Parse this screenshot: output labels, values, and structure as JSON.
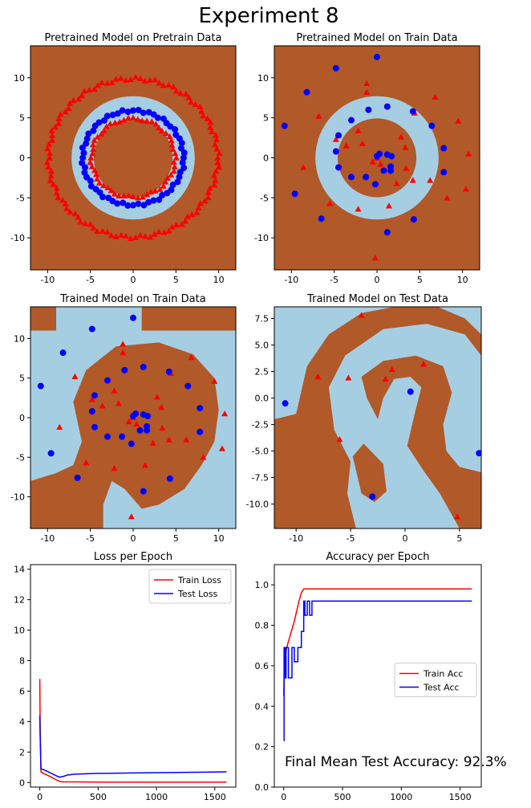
{
  "suptitle": "Experiment 8",
  "footnote": "Final Mean Test Accuracy: 92.3%",
  "colors": {
    "region_class0": "#a6cee3",
    "region_class1": "#b15928",
    "points_class0": "#0000ff",
    "points_class1": "#ff0000",
    "train_line": "#ff0000",
    "test_line": "#0000ff"
  },
  "chart_data": [
    {
      "type": "scatter",
      "subtype": "decision-boundary",
      "title": "Pretrained Model on Pretrain Data",
      "xlim": [
        -12,
        12
      ],
      "ylim": [
        -14,
        14
      ],
      "xticks": [
        "-10",
        "-5",
        "0",
        "5",
        "10"
      ],
      "yticks": [
        "-10",
        "-5",
        "0",
        "5",
        "10"
      ],
      "regions": "concentric rings: brown outer, light-blue ring r≈4–7, brown inner disk r<4",
      "series": [
        {
          "marker": "triangle",
          "class": 1,
          "points": "ring r≈10, ~100 points; inner ring r≈4.8, ~50 points"
        },
        {
          "marker": "circle",
          "class": 0,
          "points": "ring r≈6, ~60 points"
        }
      ]
    },
    {
      "type": "scatter",
      "subtype": "decision-boundary",
      "title": "Pretrained Model on Train Data",
      "xlim": [
        -12,
        12
      ],
      "ylim": [
        -14,
        14
      ],
      "xticks": [
        "-10",
        "-5",
        "0",
        "5",
        "10"
      ],
      "yticks": [
        "-10",
        "-5",
        "0",
        "5",
        "10"
      ],
      "circles": [
        [
          -10.8,
          4
        ],
        [
          -9.6,
          -4.5
        ],
        [
          -8.2,
          8.2
        ],
        [
          -6.5,
          -7.6
        ],
        [
          -4.8,
          11.2
        ],
        [
          -4.5,
          2.8
        ],
        [
          -4.8,
          0.8
        ],
        [
          -4.5,
          -1.2
        ],
        [
          -3,
          4.7
        ],
        [
          -3,
          -2.4
        ],
        [
          -1.3,
          -2.4
        ],
        [
          1.6,
          -1.6
        ],
        [
          -1,
          6
        ],
        [
          0,
          12.6
        ],
        [
          0,
          0.2
        ],
        [
          0.3,
          0.5
        ],
        [
          -0.2,
          -3.3
        ],
        [
          0.8,
          -1.6
        ],
        [
          1.2,
          0.4
        ],
        [
          1.7,
          0.2
        ],
        [
          1.6,
          -1.1
        ],
        [
          1.2,
          6.4
        ],
        [
          1.2,
          -9.3
        ],
        [
          4.2,
          5.8
        ],
        [
          4.3,
          -7.7
        ],
        [
          6.4,
          4
        ],
        [
          7.8,
          1.2
        ],
        [
          7.8,
          -1.8
        ]
      ],
      "triangles": [
        [
          -8.6,
          -1.2
        ],
        [
          -6.8,
          5.2
        ],
        [
          -5.5,
          -5.7
        ],
        [
          -4.8,
          2.3
        ],
        [
          -3.6,
          1.5
        ],
        [
          -2.2,
          3.4
        ],
        [
          -2.2,
          -6.4
        ],
        [
          -1.7,
          1.8
        ],
        [
          -1.2,
          8.2
        ],
        [
          -1.2,
          9.3
        ],
        [
          -0.5,
          -0.5
        ],
        [
          -0.2,
          -12.5
        ],
        [
          0,
          0
        ],
        [
          0.4,
          -0.8
        ],
        [
          1.4,
          -6
        ],
        [
          2.3,
          -3.2
        ],
        [
          2.8,
          2.6
        ],
        [
          3.3,
          1.3
        ],
        [
          3.4,
          -1.3
        ],
        [
          4.2,
          -2.8
        ],
        [
          4.4,
          5.6
        ],
        [
          6.2,
          -2.8
        ],
        [
          6.8,
          7.6
        ],
        [
          8.2,
          -5
        ],
        [
          9.5,
          4.6
        ],
        [
          10.4,
          -3.9
        ],
        [
          10.7,
          0.5
        ]
      ]
    },
    {
      "type": "scatter",
      "subtype": "decision-boundary",
      "title": "Trained Model on Train Data",
      "xlim": [
        -12,
        12
      ],
      "ylim": [
        -14,
        14
      ],
      "xticks": [
        "-10",
        "-5",
        "0",
        "5",
        "10"
      ],
      "yticks": [
        "-10",
        "-5",
        "0",
        "5",
        "10"
      ],
      "regions": "spiral-shaped boundary matching the two-class spiral"
    },
    {
      "type": "scatter",
      "subtype": "decision-boundary",
      "title": "Trained Model on Test Data",
      "xlim": [
        -12,
        7
      ],
      "ylim": [
        -12.3,
        8.6
      ],
      "xticks": [
        "-10",
        "-5",
        "0",
        "5"
      ],
      "yticks": [
        "7.5",
        "5.0",
        "2.5",
        "0.0",
        "-2.5",
        "-5.0",
        "-7.5",
        "-10.0"
      ],
      "circles": [
        [
          -11,
          -0.5
        ],
        [
          -3,
          -9.3
        ],
        [
          0.5,
          0.6
        ],
        [
          6.8,
          -5.2
        ]
      ],
      "triangles": [
        [
          -8,
          2
        ],
        [
          -5.2,
          1.9
        ],
        [
          -4,
          7.8
        ],
        [
          -6,
          -3.9
        ],
        [
          -1.8,
          1.8
        ],
        [
          -1.2,
          2.7
        ],
        [
          1.7,
          3.2
        ],
        [
          4.8,
          -11.2
        ]
      ]
    },
    {
      "type": "line",
      "title": "Loss per Epoch",
      "xlim": [
        -80,
        1680
      ],
      "ylim": [
        -0.3,
        14.3
      ],
      "xticks": [
        "0",
        "500",
        "1000",
        "1500"
      ],
      "yticks": [
        "0",
        "2",
        "4",
        "6",
        "8",
        "10",
        "12",
        "14"
      ],
      "legend_position": "upper right",
      "series": [
        {
          "name": "Train Loss",
          "color": "#ff0000",
          "x": [
            0,
            3,
            10,
            30,
            60,
            100,
            140,
            170,
            200,
            300,
            500,
            1000,
            1600
          ],
          "y": [
            6.8,
            3.5,
            0.7,
            0.6,
            0.5,
            0.35,
            0.18,
            0.07,
            0.05,
            0.04,
            0.03,
            0.03,
            0.03
          ]
        },
        {
          "name": "Test Loss",
          "color": "#0000ff",
          "x": [
            0,
            3,
            10,
            30,
            60,
            100,
            140,
            170,
            200,
            240,
            300,
            500,
            1000,
            1600
          ],
          "y": [
            4.4,
            3.0,
            0.9,
            0.85,
            0.75,
            0.6,
            0.45,
            0.35,
            0.4,
            0.5,
            0.55,
            0.6,
            0.65,
            0.7
          ]
        }
      ]
    },
    {
      "type": "line",
      "title": "Accuracy per Epoch",
      "xlim": [
        -80,
        1680
      ],
      "ylim": [
        0,
        1.1
      ],
      "xticks": [
        "0",
        "500",
        "1000",
        "1500"
      ],
      "yticks": [
        "0.0",
        "0.2",
        "0.4",
        "0.6",
        "0.8",
        "1.0"
      ],
      "legend_position": "center right",
      "series": [
        {
          "name": "Train Acc",
          "color": "#ff0000",
          "x": [
            0,
            5,
            15,
            30,
            50,
            70,
            90,
            110,
            130,
            150,
            170,
            1600
          ],
          "y": [
            0.45,
            0.6,
            0.66,
            0.7,
            0.74,
            0.78,
            0.82,
            0.87,
            0.92,
            0.96,
            0.98,
            0.98
          ]
        },
        {
          "name": "Test Acc",
          "color": "#0000ff",
          "x": [
            0,
            3,
            3,
            10,
            10,
            20,
            20,
            40,
            40,
            70,
            70,
            90,
            90,
            120,
            120,
            150,
            150,
            170,
            170,
            180,
            180,
            200,
            200,
            220,
            220,
            240,
            240,
            260,
            260,
            1600
          ],
          "y": [
            0.23,
            0.23,
            0.69,
            0.69,
            0.54,
            0.54,
            0.69,
            0.69,
            0.54,
            0.54,
            0.69,
            0.69,
            0.62,
            0.62,
            0.69,
            0.69,
            0.77,
            0.77,
            0.92,
            0.92,
            0.85,
            0.85,
            0.92,
            0.92,
            0.85,
            0.85,
            0.92,
            0.92,
            0.92,
            0.92
          ]
        }
      ]
    }
  ]
}
